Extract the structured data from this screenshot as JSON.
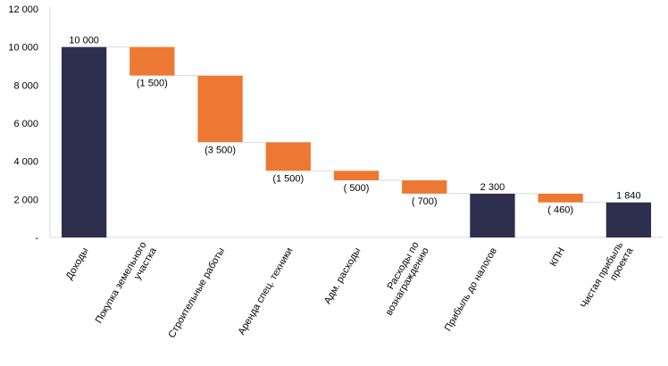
{
  "chart_data": {
    "type": "bar",
    "subtype": "waterfall",
    "categories": [
      "Доходы",
      "Покупка земельного участка",
      "Строительные работы",
      "Аренда спец. техники",
      "Адм. расходы",
      "Расходы по вознаграждению",
      "Прибыль до налогов",
      "КПН",
      "Чистая прибыль проекта"
    ],
    "category_lines": [
      [
        "Доходы"
      ],
      [
        "Покупка земельного",
        "участка"
      ],
      [
        "Строительные работы"
      ],
      [
        "Аренда спец. техники"
      ],
      [
        "Адм. расходы"
      ],
      [
        "Расходы по",
        "вознаграждению"
      ],
      [
        "Прибыль до налогов"
      ],
      [
        "КПН"
      ],
      [
        "Чистая прибыль",
        "проекта"
      ]
    ],
    "values": [
      10000,
      -1500,
      -3500,
      -1500,
      -500,
      -700,
      2300,
      -460,
      1840
    ],
    "bar_kinds": [
      "total",
      "decrease",
      "decrease",
      "decrease",
      "decrease",
      "decrease",
      "total",
      "decrease",
      "total"
    ],
    "data_labels": [
      "10 000",
      "(1 500)",
      "(3 500)",
      "(1 500)",
      "( 500)",
      "( 700)",
      "2 300",
      "( 460)",
      "1 840"
    ],
    "yticks": [
      0,
      2000,
      4000,
      6000,
      8000,
      10000,
      12000
    ],
    "ytick_labels": [
      "-",
      "2 000",
      "4 000",
      "6 000",
      "8 000",
      "10 000",
      "12 000"
    ],
    "ylim": [
      0,
      12000
    ],
    "grid": false,
    "legend": "none",
    "title": "",
    "xlabel": "",
    "ylabel": "",
    "colors": {
      "total": "#2e2e4f",
      "decrease": "#ed7833",
      "axis": "#d9d9d9",
      "connector": "#d9d9d9"
    }
  }
}
